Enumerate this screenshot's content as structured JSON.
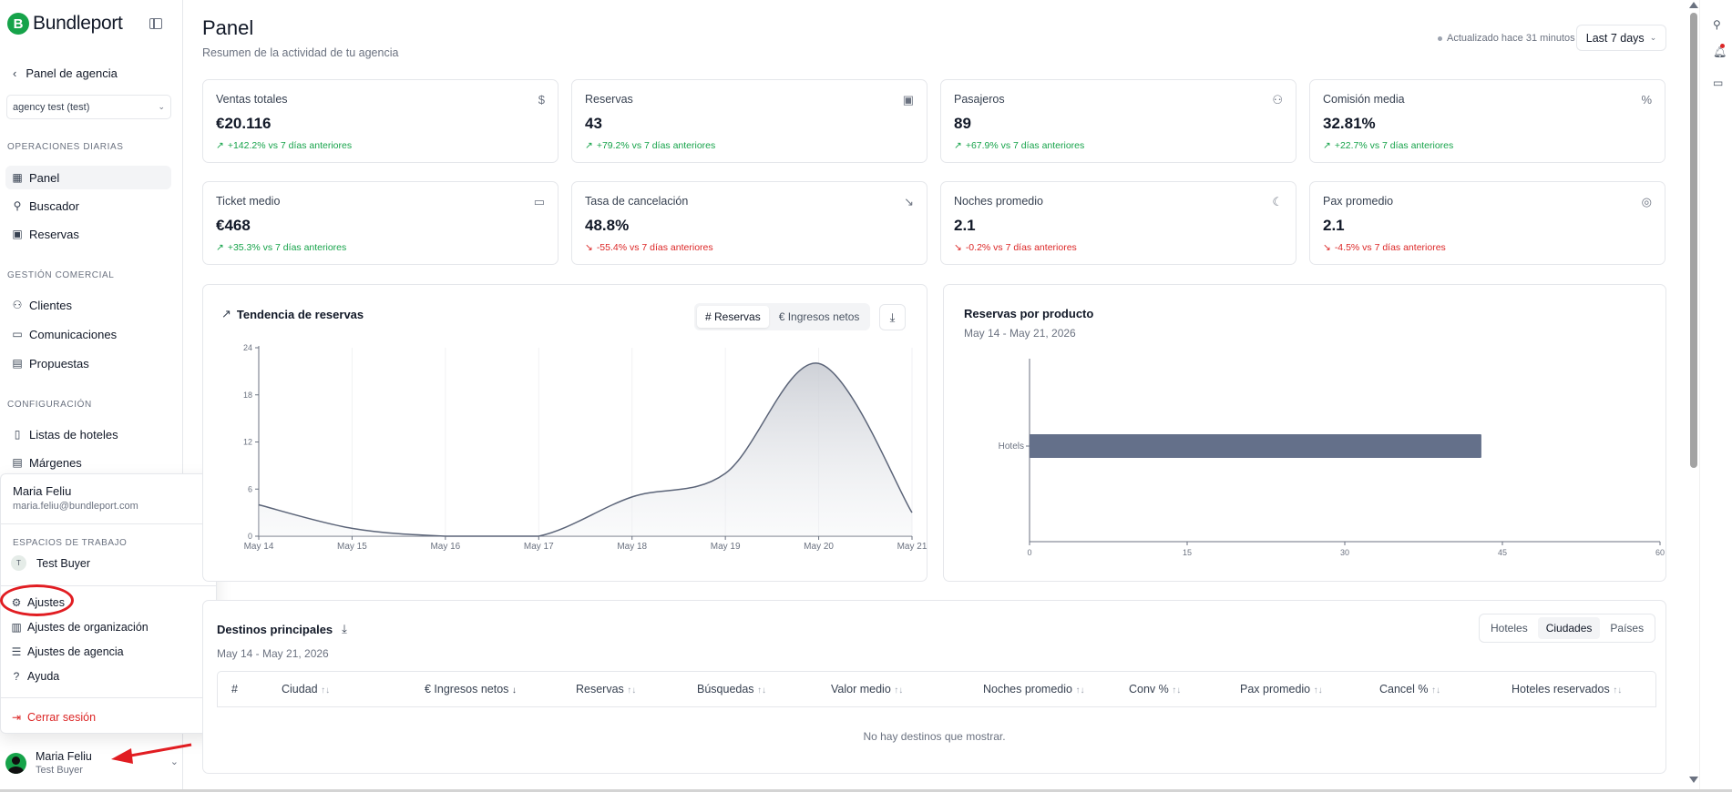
{
  "brand": {
    "name": "Bundleport",
    "mark": "B"
  },
  "sidebar": {
    "back_label": "Panel de agencia",
    "agency_select": "agency test (test)",
    "sections": [
      {
        "title": "OPERACIONES DIARIAS",
        "items": [
          {
            "label": "Panel",
            "icon": "grid-icon",
            "active": true
          },
          {
            "label": "Buscador",
            "icon": "search-icon"
          },
          {
            "label": "Reservas",
            "icon": "calendar-icon"
          }
        ]
      },
      {
        "title": "GESTIÓN COMERCIAL",
        "items": [
          {
            "label": "Clientes",
            "icon": "users-icon"
          },
          {
            "label": "Comunicaciones",
            "icon": "message-icon"
          },
          {
            "label": "Propuestas",
            "icon": "document-icon"
          }
        ]
      },
      {
        "title": "CONFIGURACIÓN",
        "items": [
          {
            "label": "Listas de hoteles",
            "icon": "bookmark-icon"
          },
          {
            "label": "Márgenes",
            "icon": "receipt-icon"
          }
        ]
      }
    ]
  },
  "popover": {
    "name": "Maria Feliu",
    "email": "maria.feliu@bundleport.com",
    "workspaces_label": "ESPACIOS DE TRABAJO",
    "workspace": {
      "badge": "T",
      "name": "Test Buyer"
    },
    "items": [
      {
        "label": "Ajustes",
        "icon": "gear-icon"
      },
      {
        "label": "Ajustes de organización",
        "icon": "building-icon"
      },
      {
        "label": "Ajustes de agencia",
        "icon": "sliders-icon"
      },
      {
        "label": "Ayuda",
        "icon": "help-icon"
      }
    ],
    "logout": "Cerrar sesión"
  },
  "user": {
    "name": "Maria Feliu",
    "workspace": "Test Buyer"
  },
  "header": {
    "title": "Panel",
    "subtitle": "Resumen de la actividad de tu agencia",
    "updated": "Actualizado hace 31 minutos",
    "period": "Last 7 days"
  },
  "kpis": [
    {
      "label": "Ventas totales",
      "value": "€20.116",
      "change": "+142.2% vs 7 días anteriores",
      "trend": "up",
      "icon": "dollar-icon"
    },
    {
      "label": "Reservas",
      "value": "43",
      "change": "+79.2% vs 7 días anteriores",
      "trend": "up",
      "icon": "calendar-icon"
    },
    {
      "label": "Pasajeros",
      "value": "89",
      "change": "+67.9% vs 7 días anteriores",
      "trend": "up",
      "icon": "users-icon"
    },
    {
      "label": "Comisión media",
      "value": "32.81%",
      "change": "+22.7% vs 7 días anteriores",
      "trend": "up",
      "icon": "percent-icon"
    },
    {
      "label": "Ticket medio",
      "value": "€468",
      "change": "+35.3% vs 7 días anteriores",
      "trend": "up",
      "icon": "ticket-icon"
    },
    {
      "label": "Tasa de cancelación",
      "value": "48.8%",
      "change": "-55.4% vs 7 días anteriores",
      "trend": "down",
      "icon": "trend-down-icon"
    },
    {
      "label": "Noches promedio",
      "value": "2.1",
      "change": "-0.2% vs 7 días anteriores",
      "trend": "down",
      "icon": "moon-icon"
    },
    {
      "label": "Pax promedio",
      "value": "2.1",
      "change": "-4.5% vs 7 días anteriores",
      "trend": "down",
      "icon": "user-circle-icon"
    }
  ],
  "trend_card": {
    "title": "Tendencia de reservas",
    "tabs": [
      "# Reservas",
      "€ Ingresos netos"
    ],
    "active_tab": 0
  },
  "product_card": {
    "title": "Reservas por producto",
    "range": "May 14 - May 21, 2026"
  },
  "chart_data": [
    {
      "type": "area",
      "x": [
        "May 14",
        "May 15",
        "May 16",
        "May 17",
        "May 18",
        "May 19",
        "May 20",
        "May 21"
      ],
      "values": [
        4,
        1,
        0,
        0,
        5,
        8,
        22,
        3
      ],
      "ylim": [
        0,
        24
      ],
      "yticks": [
        0,
        6,
        12,
        18,
        24
      ],
      "color": "#5b6478"
    },
    {
      "type": "bar",
      "orientation": "horizontal",
      "categories": [
        "Hotels"
      ],
      "values": [
        43
      ],
      "xlim": [
        0,
        60
      ],
      "xticks": [
        0,
        15,
        30,
        45,
        60
      ],
      "color": "#64708a"
    }
  ],
  "destinations": {
    "title": "Destinos principales",
    "range": "May 14 - May 21, 2026",
    "tabs": [
      "Hoteles",
      "Ciudades",
      "Países"
    ],
    "active_tab": 1,
    "columns": [
      {
        "label": "#",
        "sort": ""
      },
      {
        "label": "Ciudad",
        "sort": "↑↓"
      },
      {
        "label": "€ Ingresos netos",
        "sort": "↓"
      },
      {
        "label": "Reservas",
        "sort": "↑↓"
      },
      {
        "label": "Búsquedas",
        "sort": "↑↓"
      },
      {
        "label": "Valor medio",
        "sort": "↑↓"
      },
      {
        "label": "Noches promedio",
        "sort": "↑↓"
      },
      {
        "label": "Conv %",
        "sort": "↑↓"
      },
      {
        "label": "Pax promedio",
        "sort": "↑↓"
      },
      {
        "label": "Cancel %",
        "sort": "↑↓"
      },
      {
        "label": "Hoteles reservados",
        "sort": "↑↓"
      }
    ],
    "empty": "No hay destinos que mostrar."
  }
}
